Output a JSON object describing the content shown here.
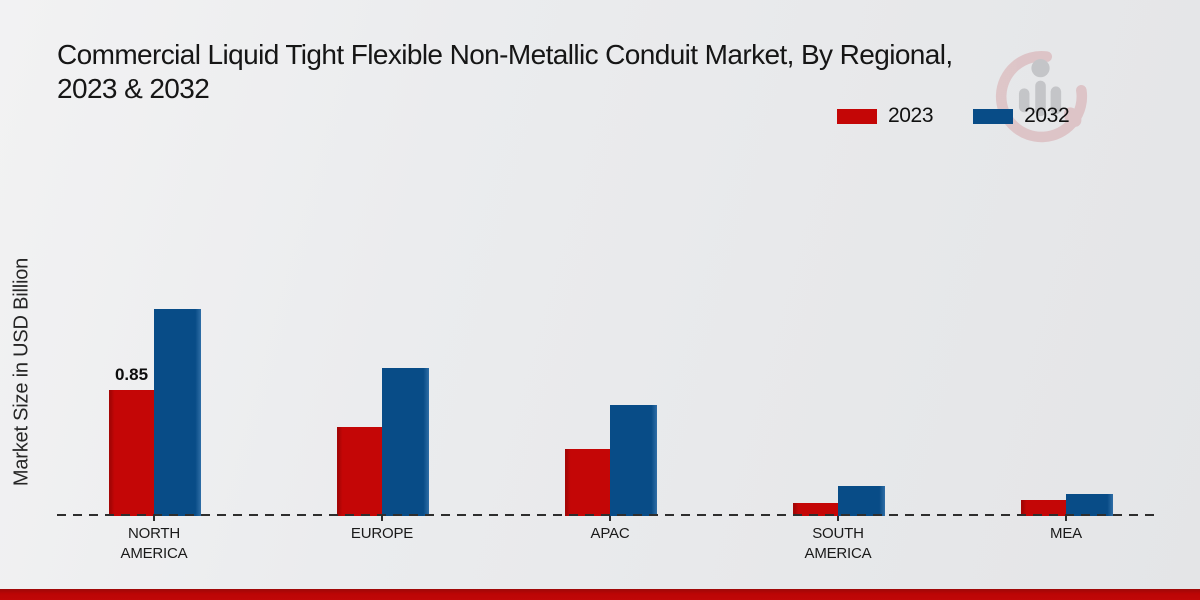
{
  "header": {
    "title_line1": "Commercial Liquid Tight Flexible Non-Metallic Conduit Market, By Regional,",
    "title_line2": "2023 & 2032"
  },
  "y_axis": {
    "label": "Market Size in USD Billion"
  },
  "legend": {
    "position": "top-right",
    "items": [
      {
        "label": "2023",
        "color": "#c40606"
      },
      {
        "label": "2032",
        "color": "#084c87"
      }
    ]
  },
  "watermark": {
    "name": "market-research-future-logo"
  },
  "footer": {
    "accent_color": "#c00707"
  },
  "chart_data": {
    "type": "bar",
    "title": "Commercial Liquid Tight Flexible Non-Metallic Conduit Market, By Regional, 2023 & 2032",
    "ylabel": "Market Size in USD Billion",
    "categories": [
      "NORTH AMERICA",
      "EUROPE",
      "APAC",
      "SOUTH AMERICA",
      "MEA"
    ],
    "series": [
      {
        "name": "2023",
        "color": "#c40606",
        "values": [
          0.85,
          0.6,
          0.45,
          0.09,
          0.11
        ]
      },
      {
        "name": "2032",
        "color": "#084c87",
        "values": [
          1.4,
          1.0,
          0.75,
          0.2,
          0.15
        ]
      }
    ],
    "annotations": [
      {
        "category": "NORTH AMERICA",
        "series": "2023",
        "text": "0.85"
      }
    ],
    "ylim": [
      0,
      1.5
    ],
    "grid": false,
    "x_axis_style": "dashed",
    "legend_position": "top-right"
  }
}
